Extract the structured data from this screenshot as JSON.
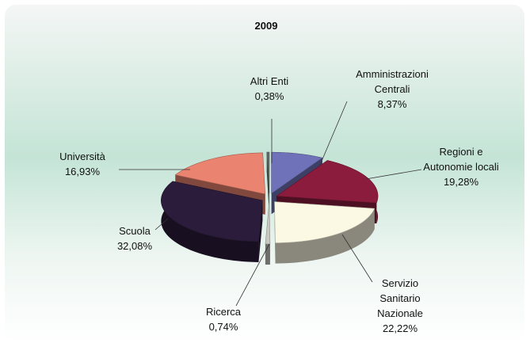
{
  "chart_data": {
    "type": "pie3d",
    "title": "2009",
    "categories": [
      "Amministrazioni\nCentrali",
      "Regioni e\nAutonomie locali",
      "Servizio\nSanitario\nNazionale",
      "Ricerca",
      "Scuola",
      "Università",
      "Altri Enti"
    ],
    "values": [
      8.37,
      19.28,
      22.22,
      0.74,
      32.08,
      16.93,
      0.38
    ],
    "value_labels": [
      "8,37%",
      "19,28%",
      "22,22%",
      "0,74%",
      "32,08%",
      "16,93%",
      "0,38%"
    ],
    "colors": [
      "#6f72b8",
      "#8c1c3e",
      "#fbf8e4",
      "#c8c8c0",
      "#2c1c3c",
      "#ea8470",
      "#6a6a6a"
    ]
  }
}
